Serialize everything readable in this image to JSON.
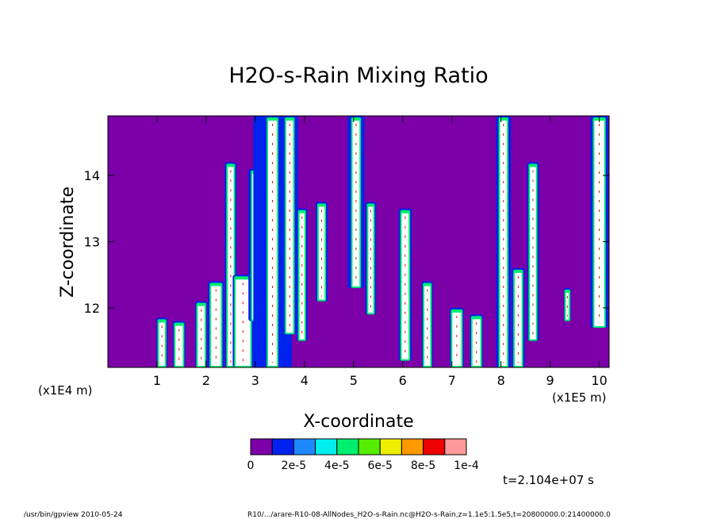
{
  "chart_data": {
    "type": "heatmap",
    "title": "H2O-s-Rain Mixing Ratio",
    "xlabel": "X-coordinate",
    "ylabel": "Z-coordinate",
    "x_unit_left": "(x1E4 m)",
    "x_unit_right": "(x1E5 m)",
    "xlim": [
      0,
      10.2
    ],
    "ylim": [
      11.1,
      14.9
    ],
    "xticks": [
      "1",
      "2",
      "3",
      "4",
      "5",
      "6",
      "7",
      "8",
      "9",
      "10"
    ],
    "yticks": [
      "12",
      "13",
      "14"
    ],
    "background_color": "#7b00a8",
    "colorbar": {
      "colors": [
        "#7b00a8",
        "#0022ee",
        "#1e88ff",
        "#00eeee",
        "#00ee6e",
        "#55ee00",
        "#eeee00",
        "#ff9900",
        "#ee0000",
        "#ff9999"
      ],
      "labels": [
        "0",
        "2e-5",
        "4e-5",
        "6e-5",
        "8e-5",
        "1e-4"
      ],
      "over_color": "#ffffff"
    },
    "columns": [
      {
        "x": 1.1,
        "z0": 11.1,
        "z1": 11.85,
        "w": 0.12,
        "blue_w": 0.05
      },
      {
        "x": 1.45,
        "z0": 11.1,
        "z1": 11.8,
        "w": 0.15,
        "blue_w": 0.05
      },
      {
        "x": 1.9,
        "z0": 11.1,
        "z1": 12.1,
        "w": 0.14,
        "blue_w": 0.05
      },
      {
        "x": 2.2,
        "z0": 11.1,
        "z1": 12.4,
        "w": 0.2,
        "blue_w": 0.06
      },
      {
        "x": 2.5,
        "z0": 11.1,
        "z1": 14.2,
        "w": 0.12,
        "blue_w": 0.06
      },
      {
        "x": 2.75,
        "z0": 11.1,
        "z1": 12.5,
        "w": 0.3,
        "blue_w": 0.06
      },
      {
        "x": 3.0,
        "z0": 11.8,
        "z1": 14.1,
        "w": 0.12,
        "blue_w": 0.08
      },
      {
        "x": 3.35,
        "z0": 11.1,
        "z1": 14.9,
        "w": 0.18,
        "blue_w": 0.3
      },
      {
        "x": 3.7,
        "z0": 11.6,
        "z1": 14.9,
        "w": 0.14,
        "blue_w": 0.1
      },
      {
        "x": 3.95,
        "z0": 11.5,
        "z1": 13.5,
        "w": 0.1,
        "blue_w": 0.06
      },
      {
        "x": 4.35,
        "z0": 12.1,
        "z1": 13.6,
        "w": 0.12,
        "blue_w": 0.06
      },
      {
        "x": 5.05,
        "z0": 12.3,
        "z1": 14.9,
        "w": 0.14,
        "blue_w": 0.1
      },
      {
        "x": 5.35,
        "z0": 11.9,
        "z1": 13.6,
        "w": 0.1,
        "blue_w": 0.06
      },
      {
        "x": 6.05,
        "z0": 11.2,
        "z1": 13.5,
        "w": 0.14,
        "blue_w": 0.06
      },
      {
        "x": 6.5,
        "z0": 11.1,
        "z1": 12.4,
        "w": 0.12,
        "blue_w": 0.05
      },
      {
        "x": 7.1,
        "z0": 11.1,
        "z1": 12.0,
        "w": 0.18,
        "blue_w": 0.05
      },
      {
        "x": 7.5,
        "z0": 11.1,
        "z1": 11.9,
        "w": 0.16,
        "blue_w": 0.05
      },
      {
        "x": 8.05,
        "z0": 11.1,
        "z1": 14.9,
        "w": 0.14,
        "blue_w": 0.08
      },
      {
        "x": 8.35,
        "z0": 11.1,
        "z1": 12.6,
        "w": 0.14,
        "blue_w": 0.06
      },
      {
        "x": 8.65,
        "z0": 11.5,
        "z1": 14.2,
        "w": 0.12,
        "blue_w": 0.06
      },
      {
        "x": 9.35,
        "z0": 11.8,
        "z1": 12.3,
        "w": 0.06,
        "blue_w": 0.04
      },
      {
        "x": 10.0,
        "z0": 11.7,
        "z1": 14.9,
        "w": 0.2,
        "blue_w": 0.08
      }
    ]
  },
  "annotations": {
    "time": "t=2.104e+07 s",
    "footer_left": "/usr/bin/gpview  2010-05-24",
    "footer_right": "R10/.../arare-R10-08-AllNodes_H2O-s-Rain.nc@H2O-s-Rain,z=1.1e5:1.5e5,t=20800000.0:21400000.0"
  }
}
